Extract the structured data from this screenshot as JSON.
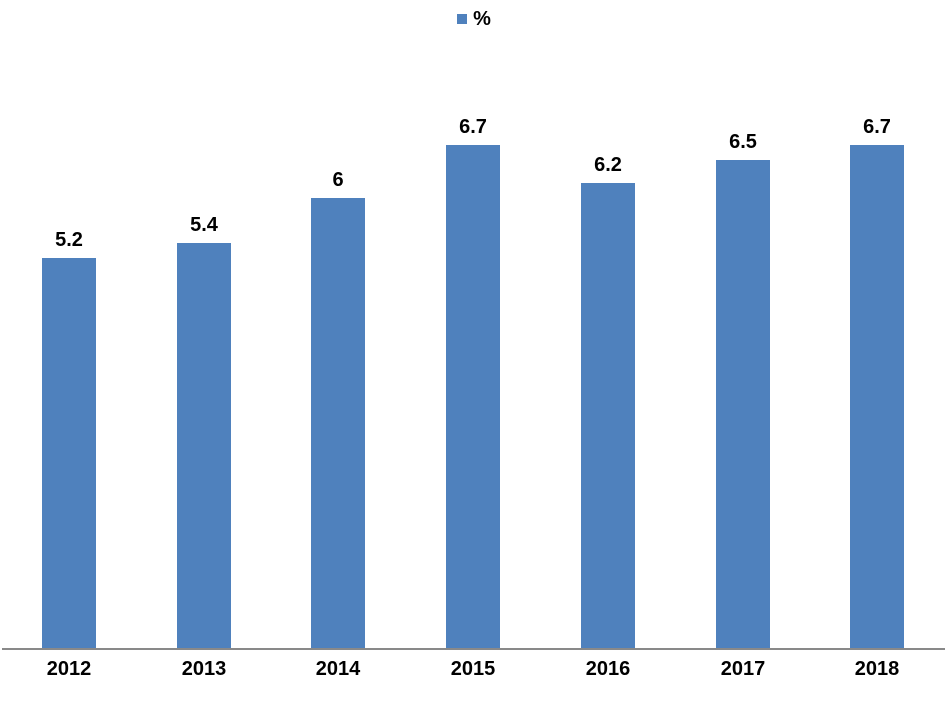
{
  "chart_data": {
    "type": "bar",
    "title": "",
    "categories": [
      "2012",
      "2013",
      "2014",
      "2015",
      "2016",
      "2017",
      "2018"
    ],
    "series": [
      {
        "name": "%",
        "values": [
          5.2,
          5.4,
          6,
          6.7,
          6.2,
          6.5,
          6.7
        ]
      }
    ],
    "value_labels": [
      "5.2",
      "5.4",
      "6",
      "6.7",
      "6.2",
      "6.5",
      "6.7"
    ],
    "legend": {
      "label": "%",
      "position": "top-center"
    },
    "xlabel": "",
    "ylabel": "",
    "ylim": [
      0,
      8
    ],
    "grid": false,
    "bar_color": "#4F81BD",
    "axis_line_color": "#898989",
    "label_color": "#000000",
    "background_color": "#FFFFFF"
  }
}
